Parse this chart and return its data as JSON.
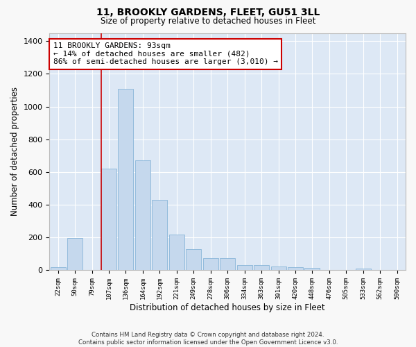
{
  "title1": "11, BROOKLY GARDENS, FLEET, GU51 3LL",
  "title2": "Size of property relative to detached houses in Fleet",
  "xlabel": "Distribution of detached houses by size in Fleet",
  "ylabel": "Number of detached properties",
  "bar_color": "#c5d8ed",
  "bar_edge_color": "#7aadd4",
  "background_color": "#dde8f5",
  "grid_color": "#ffffff",
  "categories": [
    "22sqm",
    "50sqm",
    "79sqm",
    "107sqm",
    "136sqm",
    "164sqm",
    "192sqm",
    "221sqm",
    "249sqm",
    "278sqm",
    "306sqm",
    "334sqm",
    "363sqm",
    "391sqm",
    "420sqm",
    "448sqm",
    "476sqm",
    "505sqm",
    "533sqm",
    "562sqm",
    "590sqm"
  ],
  "values": [
    20,
    195,
    0,
    620,
    1110,
    670,
    430,
    220,
    130,
    75,
    75,
    30,
    30,
    25,
    20,
    15,
    0,
    0,
    10,
    0,
    0
  ],
  "ylim": [
    0,
    1450
  ],
  "yticks": [
    0,
    200,
    400,
    600,
    800,
    1000,
    1200,
    1400
  ],
  "vline_color": "#cc0000",
  "vline_x": 2.57,
  "annotation_text": "11 BROOKLY GARDENS: 93sqm\n← 14% of detached houses are smaller (482)\n86% of semi-detached houses are larger (3,010) →",
  "annotation_box_facecolor": "#ffffff",
  "annotation_box_edgecolor": "#cc0000",
  "fig_facecolor": "#f8f8f8",
  "footnote1": "Contains HM Land Registry data © Crown copyright and database right 2024.",
  "footnote2": "Contains public sector information licensed under the Open Government Licence v3.0."
}
